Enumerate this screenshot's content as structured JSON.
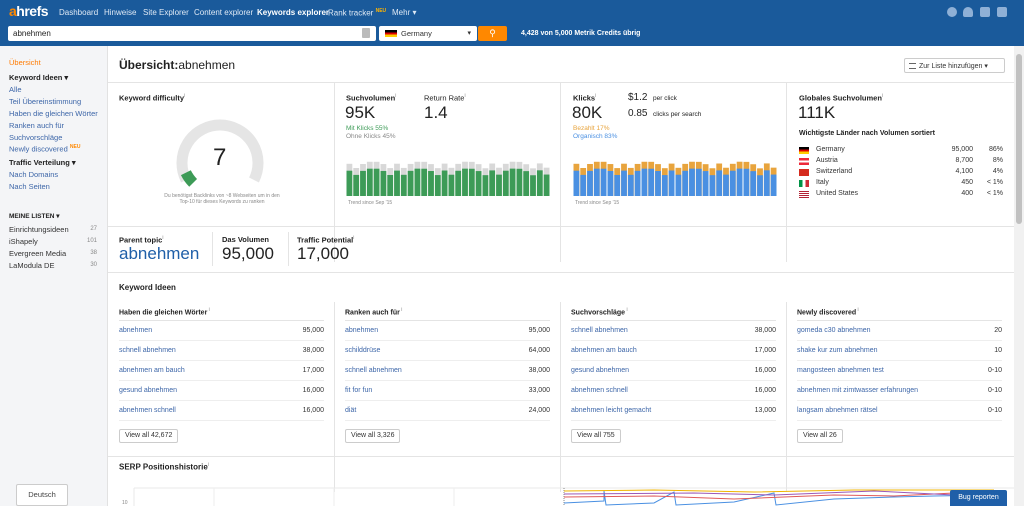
{
  "nav": {
    "logo": "ahrefs",
    "items": [
      "Dashboard",
      "Hinweise",
      "Site Explorer",
      "Content explorer",
      "Keywords explorer",
      "Rank tracker",
      "Mehr"
    ],
    "new_badge": "NEU",
    "more_caret": "▾"
  },
  "search": {
    "query": "abnehmen",
    "country": "Germany",
    "credits": "4,428 von 5,000 Metrik Credits übrig"
  },
  "sidebar": {
    "overview": "Übersicht",
    "keyword_ideas": "Keyword Ideen ▾",
    "items": [
      "Alle",
      "Teil Übereinstimmung",
      "Haben die gleichen Wörter",
      "Ranken auch für",
      "Suchvorschläge",
      "Newly discovered"
    ],
    "new_badge": "NEU",
    "traffic": "Traffic Verteilung ▾",
    "traffic_items": [
      "Nach Domains",
      "Nach Seiten"
    ],
    "lists_head": "MEINE LISTEN ▾",
    "lists": [
      {
        "name": "Einrichtungsideen",
        "count": "27"
      },
      {
        "name": "iShapely",
        "count": "101"
      },
      {
        "name": "Evergreen Media",
        "count": "38"
      },
      {
        "name": "LaModula DE",
        "count": "30"
      }
    ],
    "language": "Deutsch"
  },
  "main": {
    "title_prefix": "Übersicht:",
    "title_keyword": "abnehmen",
    "add_to_list": "Zur Liste hinzufügen ▾"
  },
  "kd": {
    "label": "Keyword difficulty",
    "value": "7",
    "score_percent": 7,
    "note": "Du benötigst Backlinks von ~8 Webseiten um in den Top-10 für dieses Keywords zu ranken"
  },
  "volume": {
    "label": "Suchvolumen",
    "value": "95K",
    "clicks": "Mit Klicks 55%",
    "noclicks": "Ohne Klicks 45%",
    "trend": "Trend since Sep '15",
    "rr_label": "Return Rate",
    "rr_value": "1.4"
  },
  "clicks": {
    "label": "Klicks",
    "value": "80K",
    "cpc_value": "$1.2",
    "cpc_unit": "per click",
    "cps_value": "0.85",
    "cps_unit": "clicks per search",
    "paid": "Bezahlt 17%",
    "organic": "Organisch 83%",
    "trend": "Trend since Sep '15"
  },
  "global": {
    "label": "Globales Suchvolumen",
    "value": "111K",
    "subtitle": "Wichtigste Länder nach Volumen sortiert",
    "countries": [
      {
        "name": "Germany",
        "volume": "95,000",
        "share": "86%"
      },
      {
        "name": "Austria",
        "volume": "8,700",
        "share": "8%"
      },
      {
        "name": "Switzerland",
        "volume": "4,100",
        "share": "4%"
      },
      {
        "name": "Italy",
        "volume": "450",
        "share": "< 1%"
      },
      {
        "name": "United States",
        "volume": "400",
        "share": "< 1%"
      }
    ]
  },
  "parent": {
    "topic_label": "Parent topic",
    "topic_value": "abnehmen",
    "volume_label": "Das Volumen",
    "volume_value": "95,000",
    "traffic_label": "Traffic Potential",
    "traffic_value": "17,000"
  },
  "ideas": {
    "title": "Keyword Ideen",
    "columns": [
      {
        "head": "Haben die gleichen Wörter",
        "rows": [
          [
            "abnehmen",
            "95,000"
          ],
          [
            "schnell abnehmen",
            "38,000"
          ],
          [
            "abnehmen am bauch",
            "17,000"
          ],
          [
            "gesund abnehmen",
            "16,000"
          ],
          [
            "abnehmen schnell",
            "16,000"
          ]
        ],
        "view_all": "View all 42,672"
      },
      {
        "head": "Ranken auch für",
        "rows": [
          [
            "abnehmen",
            "95,000"
          ],
          [
            "schilddrüse",
            "64,000"
          ],
          [
            "schnell abnehmen",
            "38,000"
          ],
          [
            "fit for fun",
            "33,000"
          ],
          [
            "diät",
            "24,000"
          ]
        ],
        "view_all": "View all 3,326"
      },
      {
        "head": "Suchvorschläge",
        "rows": [
          [
            "schnell abnehmen",
            "38,000"
          ],
          [
            "abnehmen am bauch",
            "17,000"
          ],
          [
            "gesund abnehmen",
            "16,000"
          ],
          [
            "abnehmen schnell",
            "16,000"
          ],
          [
            "abnehmen leicht gemacht",
            "13,000"
          ]
        ],
        "view_all": "View all 755"
      },
      {
        "head": "Newly discovered",
        "rows": [
          [
            "gomeda c30 abnehmen",
            "20"
          ],
          [
            "shake kur zum abnehmen",
            "10"
          ],
          [
            "mangosteen abnehmen test",
            "0-10"
          ],
          [
            "abnehmen mit zimtwasser erfahrungen",
            "0-10"
          ],
          [
            "langsam abnehmen rätsel",
            "0-10"
          ]
        ],
        "view_all": "View all 26"
      }
    ]
  },
  "serp": {
    "title": "SERP Positionshistorie",
    "axis_tick": "10"
  },
  "bug_report": "Bug reporten",
  "colors": {
    "nav_bg": "#1a5a9b",
    "accent": "#ff8800",
    "link": "#3d66a8",
    "green": "#3d9b57",
    "blue": "#4a90e2",
    "orange": "#e8a43d"
  }
}
